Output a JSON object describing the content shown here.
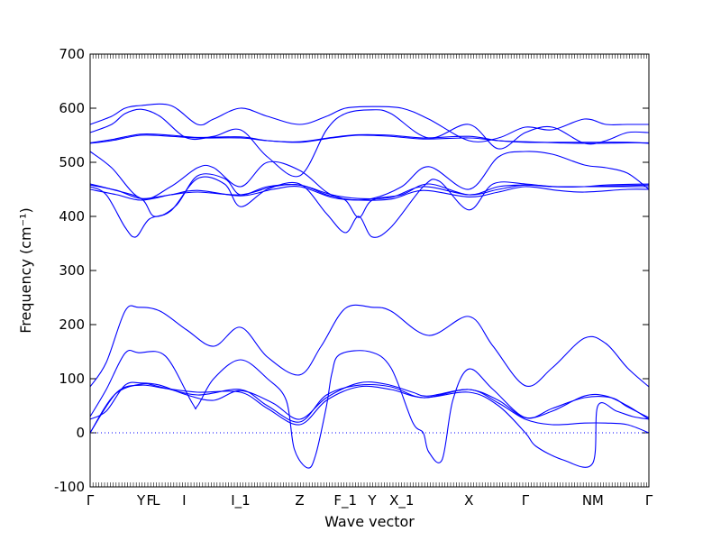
{
  "chart_data": {
    "type": "line",
    "xlabel": "Wave vector",
    "ylabel": "Frequency (cm⁻¹)",
    "ylim": [
      -100,
      700
    ],
    "yticks": [
      -100,
      0,
      100,
      200,
      300,
      400,
      500,
      600,
      700
    ],
    "kpoints": [
      {
        "label": "Γ",
        "x": 0
      },
      {
        "label": "Y",
        "x": 0.95
      },
      {
        "label": "F",
        "x": 1.12
      },
      {
        "label": "L",
        "x": 1.23
      },
      {
        "label": "I",
        "x": 1.75
      },
      {
        "label": "I_1",
        "x": 2.8
      },
      {
        "label": "Z",
        "x": 3.9
      },
      {
        "label": "F_1",
        "x": 4.75
      },
      {
        "label": "Y",
        "x": 5.25
      },
      {
        "label": "X_1",
        "x": 5.8
      },
      {
        "label": "X",
        "x": 7.05
      },
      {
        "label": "Γ",
        "x": 8.1
      },
      {
        "label": "N",
        "x": 9.25
      },
      {
        "label": "M",
        "x": 9.45
      },
      {
        "label": "Γ",
        "x": 10.4
      }
    ],
    "xlim": [
      0,
      10.4
    ],
    "zero_line": {
      "y": 0,
      "style": "dotted"
    },
    "series": [
      {
        "values": [
          [
            0,
            0
          ],
          [
            0.45,
            70
          ],
          [
            0.95,
            90
          ],
          [
            1.3,
            85
          ],
          [
            2.0,
            70
          ],
          [
            2.8,
            80
          ],
          [
            3.3,
            50
          ],
          [
            3.9,
            20
          ],
          [
            4.4,
            70
          ],
          [
            5.0,
            88
          ],
          [
            5.6,
            85
          ],
          [
            6.2,
            65
          ],
          [
            7.05,
            80
          ],
          [
            7.6,
            55
          ],
          [
            8.1,
            25
          ],
          [
            8.6,
            15
          ],
          [
            9.2,
            18
          ],
          [
            9.6,
            18
          ],
          [
            10.0,
            15
          ],
          [
            10.4,
            0
          ]
        ]
      },
      {
        "values": [
          [
            0,
            0
          ],
          [
            0.5,
            75
          ],
          [
            0.95,
            88
          ],
          [
            1.4,
            82
          ],
          [
            2.0,
            75
          ],
          [
            2.8,
            75
          ],
          [
            3.3,
            45
          ],
          [
            3.9,
            15
          ],
          [
            4.4,
            60
          ],
          [
            5.0,
            85
          ],
          [
            5.6,
            80
          ],
          [
            6.2,
            65
          ],
          [
            7.05,
            75
          ],
          [
            7.6,
            50
          ],
          [
            8.1,
            0
          ],
          [
            8.3,
            -25
          ],
          [
            8.8,
            -50
          ],
          [
            9.35,
            -57
          ],
          [
            9.45,
            50
          ],
          [
            9.8,
            40
          ],
          [
            10.1,
            30
          ],
          [
            10.4,
            25
          ]
        ]
      },
      {
        "values": [
          [
            0,
            25
          ],
          [
            0.3,
            40
          ],
          [
            0.65,
            88
          ],
          [
            0.95,
            92
          ],
          [
            1.3,
            88
          ],
          [
            1.8,
            70
          ],
          [
            2.3,
            60
          ],
          [
            2.8,
            78
          ],
          [
            3.4,
            55
          ],
          [
            3.9,
            25
          ],
          [
            4.4,
            65
          ],
          [
            5.0,
            92
          ],
          [
            5.5,
            90
          ],
          [
            6.0,
            75
          ],
          [
            6.3,
            68
          ],
          [
            7.05,
            80
          ],
          [
            7.6,
            60
          ],
          [
            8.1,
            28
          ],
          [
            8.6,
            40
          ],
          [
            9.2,
            68
          ],
          [
            9.6,
            68
          ],
          [
            10.0,
            50
          ],
          [
            10.4,
            25
          ]
        ]
      },
      {
        "values": [
          [
            0,
            30
          ],
          [
            0.3,
            80
          ],
          [
            0.65,
            147
          ],
          [
            0.9,
            148
          ],
          [
            1.4,
            142
          ],
          [
            1.9,
            55
          ],
          [
            2.0,
            50
          ],
          [
            2.3,
            100
          ],
          [
            2.8,
            135
          ],
          [
            3.3,
            100
          ],
          [
            3.65,
            60
          ],
          [
            3.8,
            -30
          ],
          [
            4.05,
            -65
          ],
          [
            4.2,
            -40
          ],
          [
            4.4,
            50
          ],
          [
            4.5,
            110
          ],
          [
            4.65,
            145
          ],
          [
            5.2,
            150
          ],
          [
            5.6,
            120
          ],
          [
            6.0,
            20
          ],
          [
            6.2,
            0
          ],
          [
            6.3,
            -35
          ],
          [
            6.55,
            -50
          ],
          [
            6.75,
            60
          ],
          [
            7.05,
            118
          ],
          [
            7.5,
            80
          ],
          [
            8.1,
            28
          ],
          [
            8.6,
            45
          ],
          [
            9.2,
            65
          ],
          [
            9.7,
            65
          ],
          [
            10.0,
            48
          ],
          [
            10.4,
            28
          ]
        ]
      },
      {
        "values": [
          [
            0,
            85
          ],
          [
            0.3,
            130
          ],
          [
            0.65,
            225
          ],
          [
            0.9,
            232
          ],
          [
            1.3,
            225
          ],
          [
            1.8,
            190
          ],
          [
            2.3,
            160
          ],
          [
            2.8,
            195
          ],
          [
            3.3,
            140
          ],
          [
            3.9,
            107
          ],
          [
            4.3,
            160
          ],
          [
            4.75,
            230
          ],
          [
            5.25,
            232
          ],
          [
            5.6,
            225
          ],
          [
            6.3,
            180
          ],
          [
            7.05,
            215
          ],
          [
            7.5,
            160
          ],
          [
            8.1,
            87
          ],
          [
            8.6,
            120
          ],
          [
            9.2,
            175
          ],
          [
            9.6,
            165
          ],
          [
            10.0,
            120
          ],
          [
            10.4,
            85
          ]
        ]
      },
      {
        "values": [
          [
            0,
            455
          ],
          [
            0.3,
            440
          ],
          [
            0.65,
            380
          ],
          [
            0.85,
            362
          ],
          [
            1.1,
            395
          ],
          [
            1.5,
            410
          ],
          [
            2.0,
            470
          ],
          [
            2.5,
            460
          ],
          [
            2.8,
            418
          ],
          [
            3.3,
            450
          ],
          [
            3.9,
            460
          ],
          [
            4.4,
            405
          ],
          [
            4.75,
            370
          ],
          [
            5.0,
            400
          ],
          [
            5.25,
            362
          ],
          [
            5.6,
            380
          ],
          [
            6.2,
            455
          ],
          [
            6.5,
            465
          ],
          [
            7.05,
            412
          ],
          [
            7.5,
            460
          ],
          [
            8.1,
            460
          ],
          [
            8.6,
            455
          ],
          [
            9.2,
            455
          ],
          [
            9.6,
            458
          ],
          [
            10.4,
            460
          ]
        ]
      },
      {
        "values": [
          [
            0,
            460
          ],
          [
            0.4,
            450
          ],
          [
            0.95,
            433
          ],
          [
            1.2,
            400
          ],
          [
            1.6,
            420
          ],
          [
            2.0,
            475
          ],
          [
            2.5,
            470
          ],
          [
            2.8,
            440
          ],
          [
            3.3,
            455
          ],
          [
            3.9,
            458
          ],
          [
            4.4,
            440
          ],
          [
            4.75,
            430
          ],
          [
            5.0,
            398
          ],
          [
            5.25,
            430
          ],
          [
            5.8,
            440
          ],
          [
            6.3,
            460
          ],
          [
            7.05,
            440
          ],
          [
            7.6,
            455
          ],
          [
            8.1,
            458
          ],
          [
            8.6,
            455
          ],
          [
            9.2,
            455
          ],
          [
            9.6,
            455
          ],
          [
            10.4,
            455
          ]
        ]
      },
      {
        "values": [
          [
            0,
            458
          ],
          [
            0.5,
            448
          ],
          [
            0.95,
            433
          ],
          [
            1.5,
            440
          ],
          [
            2.0,
            445
          ],
          [
            2.8,
            440
          ],
          [
            3.4,
            455
          ],
          [
            3.9,
            458
          ],
          [
            4.5,
            440
          ],
          [
            5.0,
            433
          ],
          [
            5.6,
            435
          ],
          [
            6.2,
            455
          ],
          [
            7.05,
            440
          ],
          [
            7.6,
            450
          ],
          [
            8.1,
            458
          ],
          [
            8.7,
            455
          ],
          [
            9.2,
            455
          ],
          [
            10.0,
            457
          ],
          [
            10.4,
            458
          ]
        ]
      },
      {
        "values": [
          [
            0,
            450
          ],
          [
            0.5,
            440
          ],
          [
            0.95,
            430
          ],
          [
            1.5,
            440
          ],
          [
            2.0,
            448
          ],
          [
            2.8,
            438
          ],
          [
            3.4,
            450
          ],
          [
            3.9,
            455
          ],
          [
            4.5,
            435
          ],
          [
            5.0,
            430
          ],
          [
            5.6,
            432
          ],
          [
            6.2,
            448
          ],
          [
            7.05,
            436
          ],
          [
            7.6,
            445
          ],
          [
            8.1,
            455
          ],
          [
            8.7,
            448
          ],
          [
            9.2,
            445
          ],
          [
            10.0,
            450
          ],
          [
            10.4,
            450
          ]
        ]
      },
      {
        "values": [
          [
            0,
            520
          ],
          [
            0.4,
            490
          ],
          [
            0.95,
            433
          ],
          [
            1.5,
            455
          ],
          [
            2.0,
            490
          ],
          [
            2.3,
            490
          ],
          [
            2.8,
            455
          ],
          [
            3.3,
            500
          ],
          [
            3.9,
            485
          ],
          [
            4.4,
            445
          ],
          [
            4.75,
            432
          ],
          [
            5.25,
            433
          ],
          [
            5.8,
            455
          ],
          [
            6.3,
            492
          ],
          [
            7.05,
            450
          ],
          [
            7.6,
            510
          ],
          [
            8.1,
            520
          ],
          [
            8.6,
            515
          ],
          [
            9.2,
            495
          ],
          [
            9.6,
            490
          ],
          [
            10.0,
            480
          ],
          [
            10.4,
            450
          ]
        ]
      },
      {
        "values": [
          [
            0,
            535
          ],
          [
            0.4,
            540
          ],
          [
            0.95,
            550
          ],
          [
            1.5,
            548
          ],
          [
            2.0,
            545
          ],
          [
            2.8,
            545
          ],
          [
            3.3,
            540
          ],
          [
            3.9,
            537
          ],
          [
            4.5,
            545
          ],
          [
            5.0,
            550
          ],
          [
            5.6,
            548
          ],
          [
            6.2,
            543
          ],
          [
            7.05,
            545
          ],
          [
            7.6,
            540
          ],
          [
            8.1,
            537
          ],
          [
            8.7,
            537
          ],
          [
            9.2,
            537
          ],
          [
            10.0,
            537
          ],
          [
            10.4,
            535
          ]
        ]
      },
      {
        "values": [
          [
            0,
            536
          ],
          [
            0.4,
            542
          ],
          [
            0.95,
            552
          ],
          [
            1.5,
            550
          ],
          [
            2.0,
            546
          ],
          [
            2.8,
            547
          ],
          [
            3.3,
            540
          ],
          [
            3.9,
            538
          ],
          [
            4.5,
            546
          ],
          [
            5.0,
            551
          ],
          [
            5.6,
            550
          ],
          [
            6.2,
            545
          ],
          [
            7.05,
            548
          ],
          [
            7.6,
            540
          ],
          [
            8.1,
            538
          ],
          [
            8.7,
            536
          ],
          [
            9.2,
            535
          ],
          [
            10.0,
            536
          ],
          [
            10.4,
            536
          ]
        ]
      },
      {
        "values": [
          [
            0,
            555
          ],
          [
            0.4,
            570
          ],
          [
            0.65,
            590
          ],
          [
            0.95,
            598
          ],
          [
            1.3,
            585
          ],
          [
            1.8,
            545
          ],
          [
            2.3,
            548
          ],
          [
            2.8,
            560
          ],
          [
            3.3,
            510
          ],
          [
            3.9,
            475
          ],
          [
            4.4,
            560
          ],
          [
            4.75,
            590
          ],
          [
            5.25,
            597
          ],
          [
            5.6,
            590
          ],
          [
            6.3,
            545
          ],
          [
            7.05,
            570
          ],
          [
            7.6,
            525
          ],
          [
            8.1,
            555
          ],
          [
            8.6,
            565
          ],
          [
            9.2,
            535
          ],
          [
            9.6,
            540
          ],
          [
            10.0,
            555
          ],
          [
            10.4,
            555
          ]
        ]
      },
      {
        "values": [
          [
            0,
            570
          ],
          [
            0.4,
            585
          ],
          [
            0.65,
            600
          ],
          [
            0.95,
            605
          ],
          [
            1.5,
            605
          ],
          [
            2.0,
            570
          ],
          [
            2.3,
            580
          ],
          [
            2.8,
            600
          ],
          [
            3.3,
            585
          ],
          [
            3.9,
            570
          ],
          [
            4.4,
            585
          ],
          [
            4.75,
            600
          ],
          [
            5.25,
            603
          ],
          [
            5.8,
            600
          ],
          [
            6.3,
            580
          ],
          [
            7.05,
            540
          ],
          [
            7.6,
            545
          ],
          [
            8.1,
            565
          ],
          [
            8.6,
            560
          ],
          [
            9.2,
            580
          ],
          [
            9.6,
            570
          ],
          [
            10.0,
            570
          ],
          [
            10.4,
            570
          ]
        ]
      }
    ]
  }
}
